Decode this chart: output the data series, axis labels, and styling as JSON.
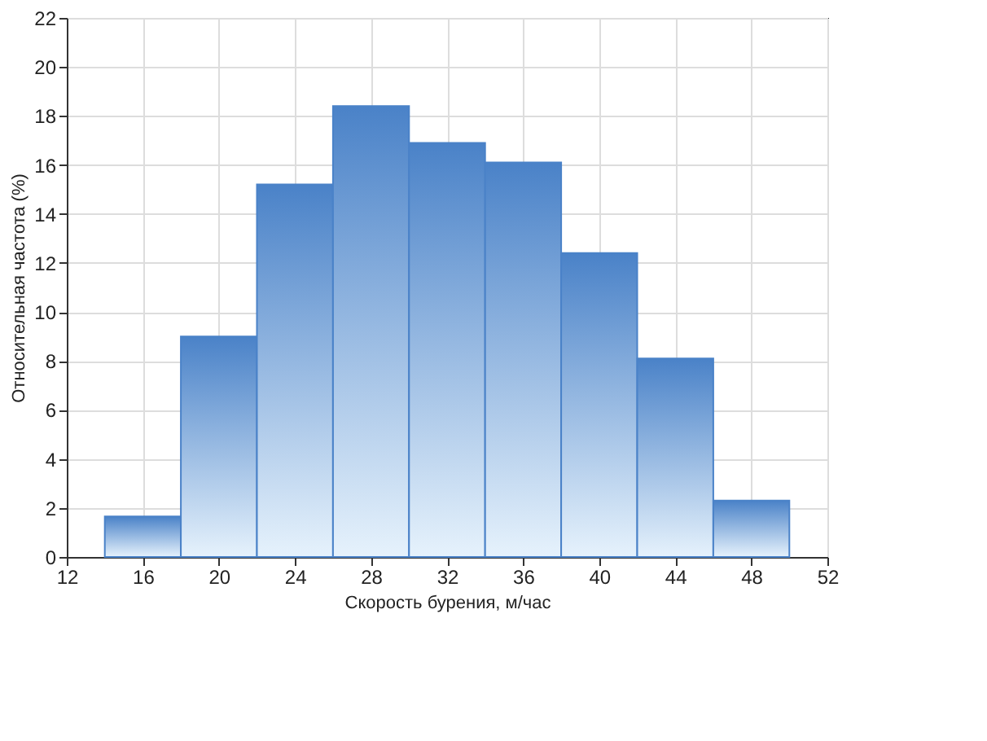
{
  "chart_data": {
    "type": "histogram",
    "xlabel": "Скорость бурения, м/час",
    "ylabel": "Относительная частота (%)",
    "bins": [
      14,
      18,
      22,
      26,
      30,
      34,
      38,
      42,
      46,
      50
    ],
    "values": [
      1.65,
      9.0,
      15.2,
      18.4,
      16.9,
      16.1,
      12.4,
      8.1,
      2.3
    ],
    "color": "#4a82c8",
    "xlim": [
      12,
      52
    ],
    "xticks": [
      12,
      16,
      20,
      24,
      28,
      32,
      36,
      40,
      44,
      48,
      52
    ],
    "ylim": [
      0,
      22
    ],
    "yticks": [
      0,
      2,
      4,
      6,
      8,
      10,
      12,
      14,
      16,
      18,
      20,
      22
    ],
    "grid": true
  }
}
